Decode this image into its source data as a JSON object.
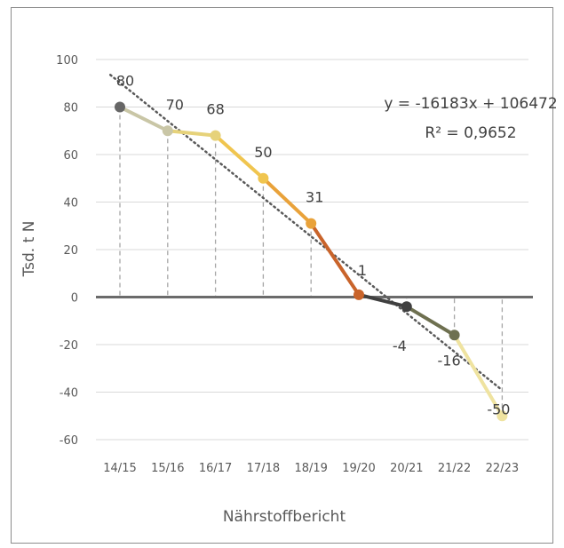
{
  "chart_data": {
    "type": "line",
    "categories": [
      "14/15",
      "15/16",
      "16/17",
      "17/18",
      "18/19",
      "19/20",
      "20/21",
      "21/22",
      "22/23"
    ],
    "values": [
      80,
      70,
      68,
      50,
      31,
      1,
      -4,
      -16,
      -50
    ],
    "data_labels": [
      "80",
      "70",
      "68",
      "50",
      "31",
      "1",
      "-4",
      "-16",
      "-50"
    ],
    "segment_colors": [
      "#c9c6a6",
      "#e6d27a",
      "#f0c54f",
      "#e9a23a",
      "#c9642b",
      "#404040",
      "#6e7050",
      "#efe3a0"
    ],
    "point_colors": [
      "#666666",
      "#c9c6a6",
      "#e6d27a",
      "#f0c54f",
      "#e9a23a",
      "#c9642b",
      "#404040",
      "#6e7050",
      "#efe3a0"
    ],
    "xlabel": "Nährstoffbericht",
    "ylabel": "Tsd. t N",
    "ylim": [
      -60,
      100
    ],
    "yticks": [
      "-60",
      "-40",
      "-20",
      "0",
      "20",
      "40",
      "60",
      "80",
      "100"
    ],
    "ytick_values": [
      -60,
      -40,
      -20,
      0,
      20,
      40,
      60,
      80,
      100
    ],
    "grid": true,
    "trendline": {
      "type": "linear",
      "equation": "y = -16183x + 106472",
      "r_squared": "R² = 0,9652",
      "color": "#595959"
    },
    "drop_lines": true
  }
}
